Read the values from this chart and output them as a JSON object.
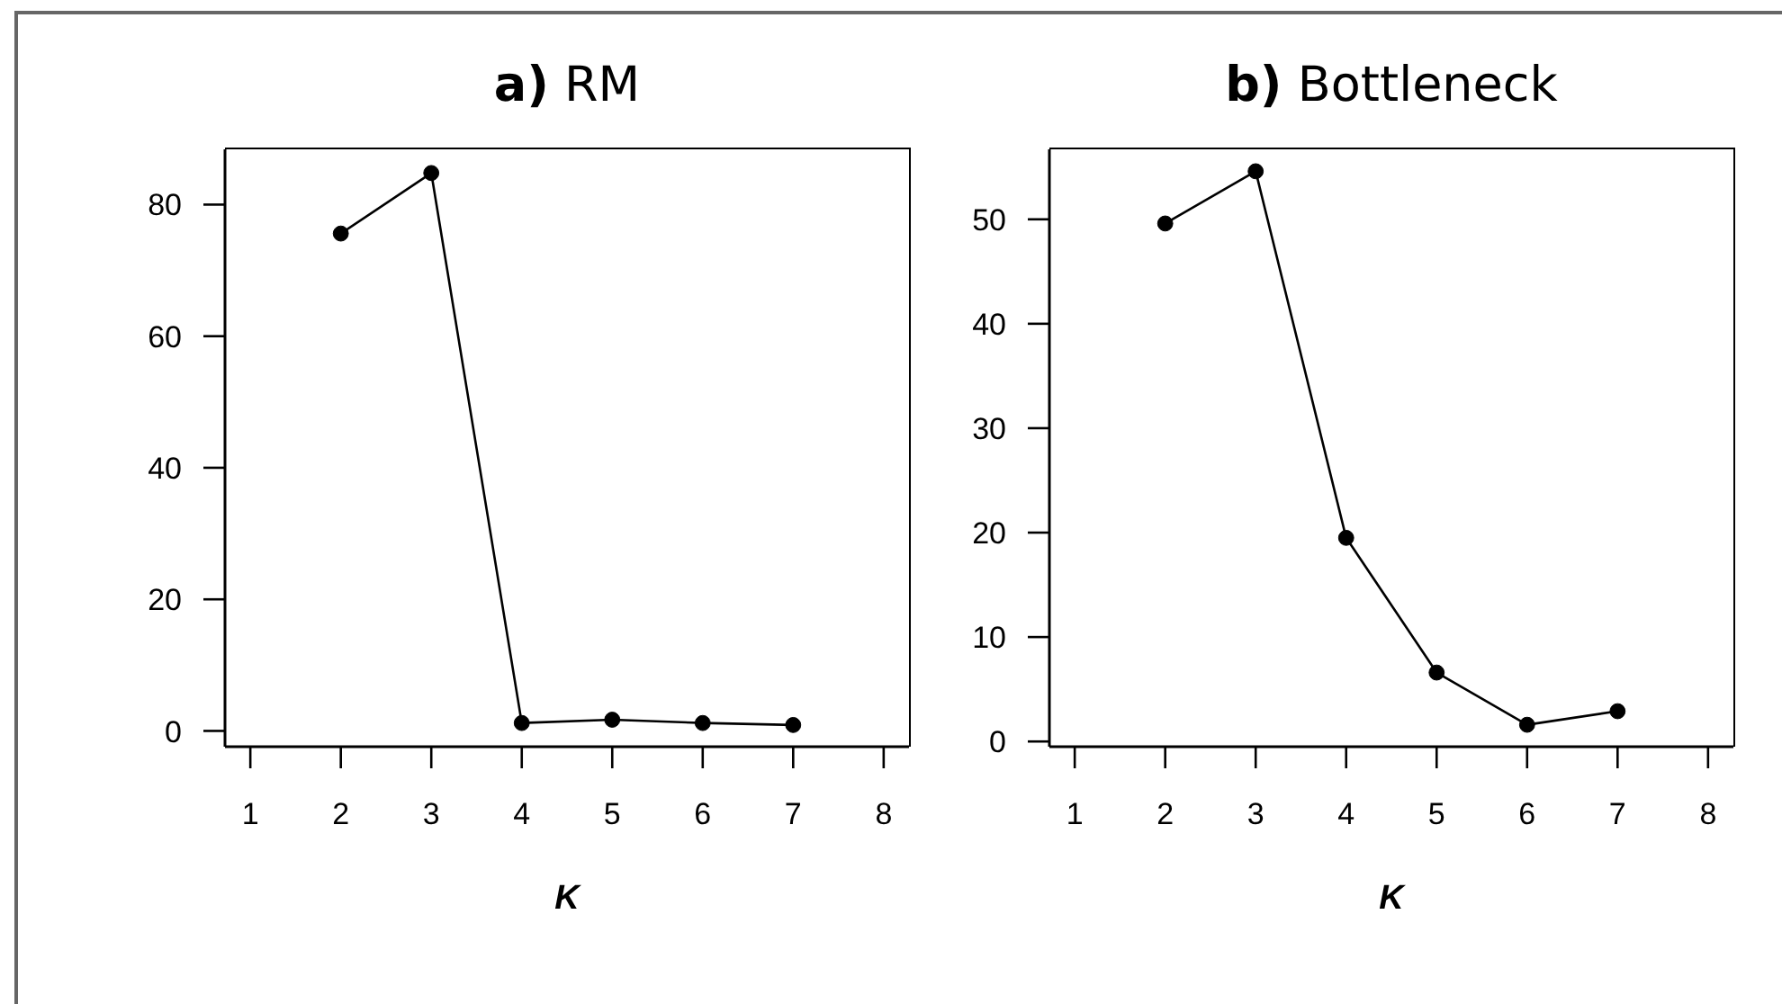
{
  "chart_data": [
    {
      "type": "line",
      "title": "a) RM",
      "xlabel": "K",
      "x": [
        2,
        3,
        4,
        5,
        6,
        7
      ],
      "values": [
        75.6,
        84.8,
        1.2,
        1.7,
        1.2,
        0.9
      ],
      "color": "#000000",
      "marker": "circle",
      "xlim": [
        0.72,
        8.28
      ],
      "xticks": [
        1,
        2,
        3,
        4,
        5,
        6,
        7,
        8
      ],
      "ylim": [
        -2.4,
        88.4
      ],
      "yticks": [
        0,
        20,
        40,
        60,
        80
      ]
    },
    {
      "type": "line",
      "title": "b) Bottleneck",
      "xlabel": "K",
      "x": [
        2,
        3,
        4,
        5,
        6,
        7
      ],
      "values": [
        49.6,
        54.6,
        19.5,
        6.6,
        1.6,
        2.9
      ],
      "color": "#000000",
      "marker": "circle",
      "xlim": [
        0.72,
        8.28
      ],
      "xticks": [
        1,
        2,
        3,
        4,
        5,
        6,
        7,
        8
      ],
      "ylim": [
        -0.5,
        56.7
      ],
      "yticks": [
        0,
        10,
        20,
        30,
        40,
        50
      ]
    }
  ]
}
